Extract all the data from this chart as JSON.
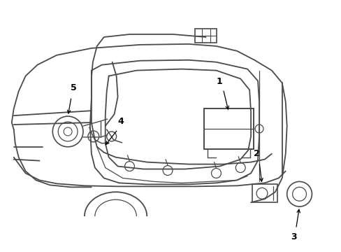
{
  "bg_color": "#ffffff",
  "line_color": "#4a4a4a",
  "figsize": [
    4.89,
    3.6
  ],
  "dpi": 100
}
